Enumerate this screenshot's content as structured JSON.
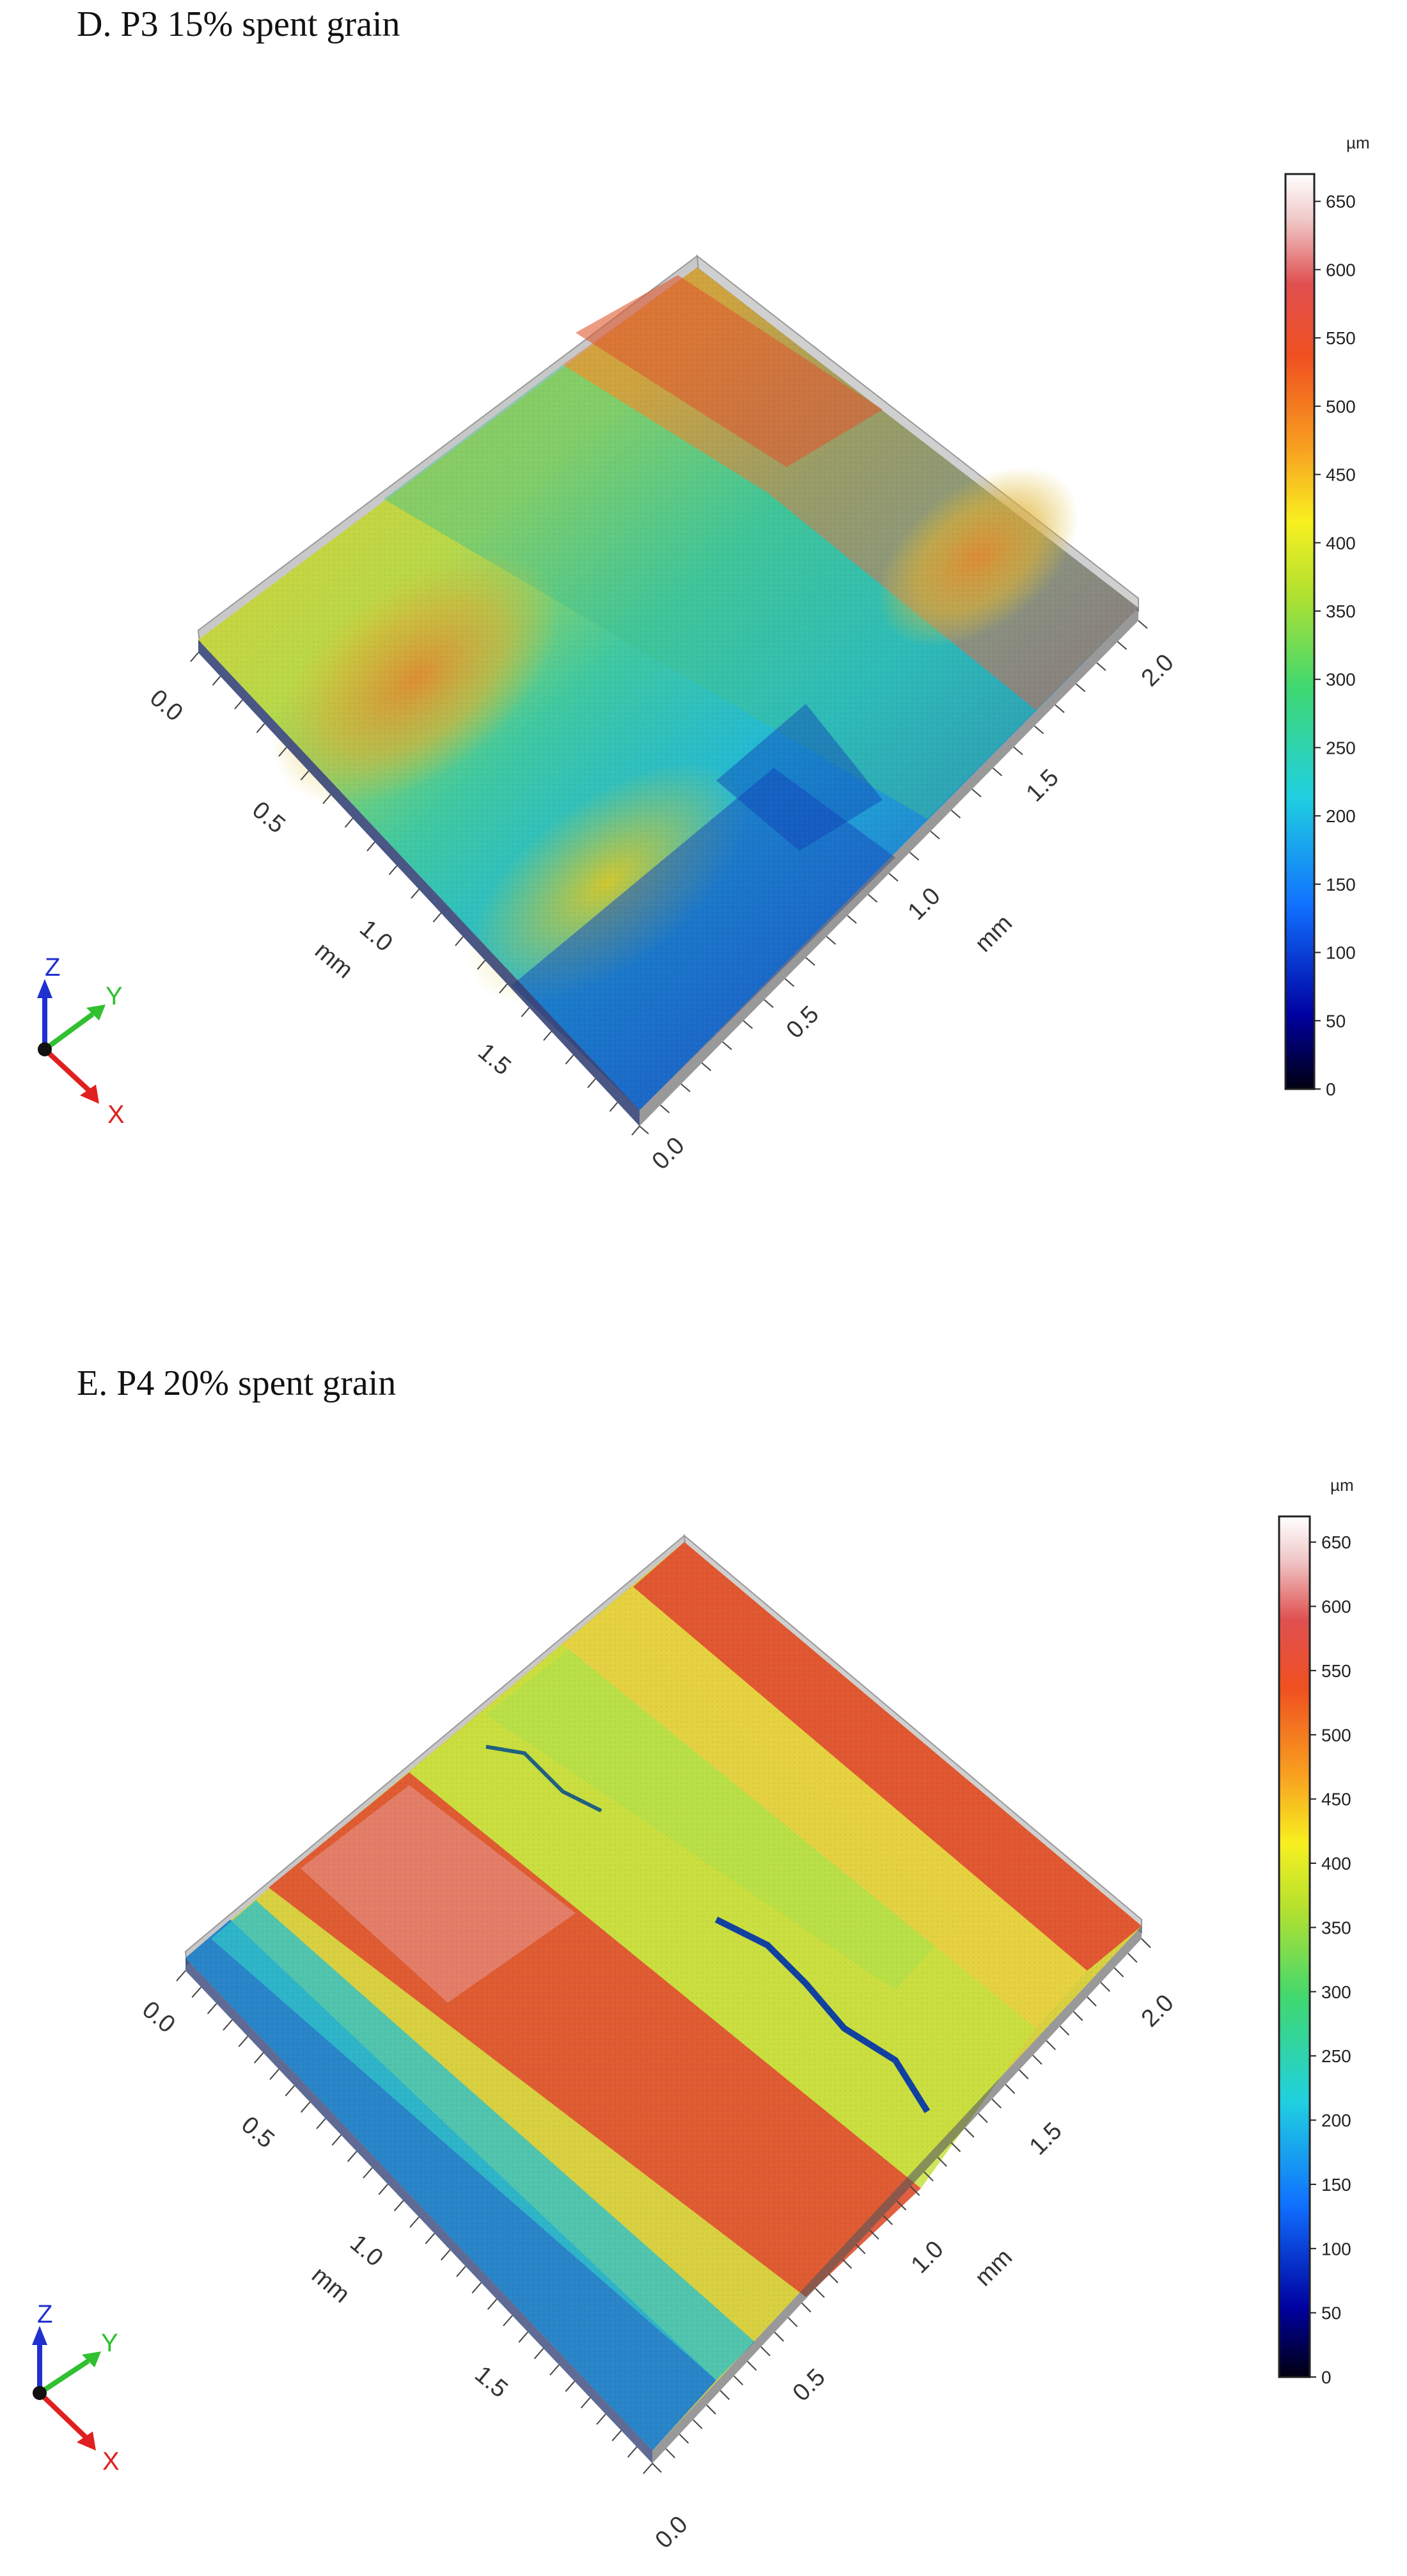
{
  "panels": [
    {
      "id": "D",
      "title": "D. P3 15% spent grain",
      "unit": "µm",
      "colorbar_ticks": [
        "0",
        "50",
        "100",
        "150",
        "200",
        "250",
        "300",
        "350",
        "400",
        "450",
        "500",
        "550",
        "600",
        "650"
      ],
      "x_axis": {
        "label": "mm",
        "ticks": [
          "0.0",
          "0.5",
          "1.0",
          "1.5"
        ]
      },
      "y_axis": {
        "label": "mm",
        "ticks": [
          "0.0",
          "0.5",
          "1.0",
          "1.5",
          "2.0"
        ]
      },
      "triad": {
        "z": "Z",
        "y": "Y",
        "x": "X"
      }
    },
    {
      "id": "E",
      "title": "E. P4 20% spent grain",
      "unit": "µm",
      "colorbar_ticks": [
        "0",
        "50",
        "100",
        "150",
        "200",
        "250",
        "300",
        "350",
        "400",
        "450",
        "500",
        "550",
        "600",
        "650"
      ],
      "x_axis": {
        "label": "mm",
        "ticks": [
          "0.0",
          "0.5",
          "1.0",
          "1.5"
        ]
      },
      "y_axis": {
        "label": "mm",
        "ticks": [
          "0.0",
          "0.5",
          "1.0",
          "1.5",
          "2.0"
        ]
      },
      "triad": {
        "z": "Z",
        "y": "Y",
        "x": "X"
      }
    }
  ],
  "colormap": [
    "#000020",
    "#0000a0",
    "#1060ff",
    "#20c8e8",
    "#30d890",
    "#90e040",
    "#f0f020",
    "#f8b020",
    "#f06020",
    "#e04030",
    "#f0c0c0",
    "#ffffff"
  ]
}
